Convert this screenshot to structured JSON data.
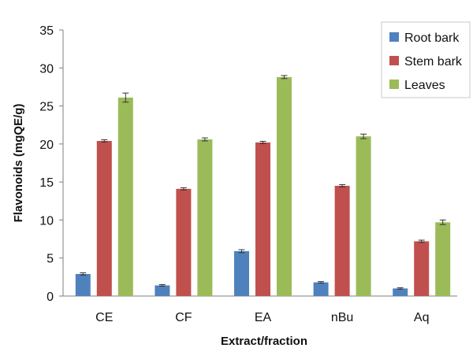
{
  "chart_data": {
    "type": "bar",
    "title": "",
    "xlabel": "Extract/fraction",
    "ylabel": "Flavonoids (mgQE/g)",
    "ylim": [
      0,
      35
    ],
    "yticks": [
      0,
      5,
      10,
      15,
      20,
      25,
      30,
      35
    ],
    "grid": false,
    "legend_position": "top-right",
    "categories": [
      "CE",
      "CF",
      "EA",
      "nBu",
      "Aq"
    ],
    "series": [
      {
        "name": "Root bark",
        "color": "#4f81bd",
        "values": [
          2.9,
          1.4,
          5.9,
          1.8,
          1.0
        ],
        "errors": [
          0.15,
          0.1,
          0.2,
          0.1,
          0.1
        ]
      },
      {
        "name": "Stem bark",
        "color": "#c0504d",
        "values": [
          20.4,
          14.1,
          20.2,
          14.5,
          7.2
        ],
        "errors": [
          0.15,
          0.15,
          0.15,
          0.15,
          0.15
        ]
      },
      {
        "name": "Leaves",
        "color": "#9bbb59",
        "values": [
          26.1,
          20.6,
          28.8,
          21.0,
          9.7
        ],
        "errors": [
          0.6,
          0.2,
          0.2,
          0.3,
          0.3
        ]
      }
    ]
  }
}
